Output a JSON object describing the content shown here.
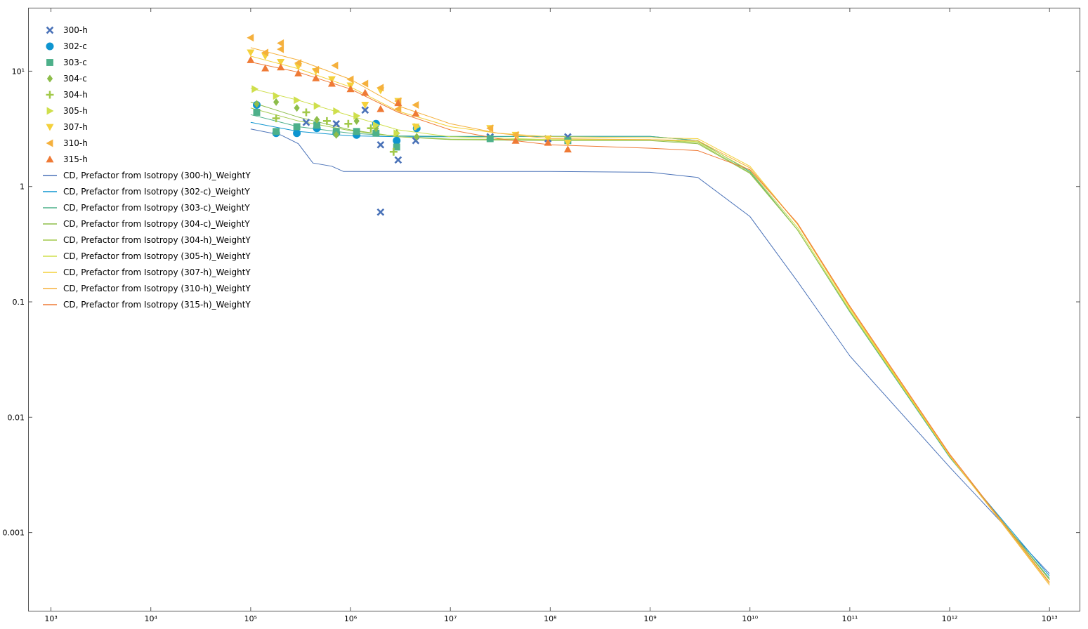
{
  "chart_data": {
    "type": "scatter",
    "title": "",
    "xlabel": "",
    "ylabel": "",
    "x_scale": "log",
    "y_scale": "log",
    "xlim": [
      600,
      20000000000000
    ],
    "ylim": [
      0.00021,
      35
    ],
    "grid": false,
    "legend_position": "top-left",
    "x_ticks": [
      {
        "value": 1000,
        "label": "10³"
      },
      {
        "value": 10000,
        "label": "10⁴"
      },
      {
        "value": 100000,
        "label": "10⁵"
      },
      {
        "value": 1000000,
        "label": "10⁶"
      },
      {
        "value": 10000000,
        "label": "10⁷"
      },
      {
        "value": 100000000,
        "label": "10⁸"
      },
      {
        "value": 1000000000,
        "label": "10⁹"
      },
      {
        "value": 10000000000,
        "label": "10¹⁰"
      },
      {
        "value": 100000000000,
        "label": "10¹¹"
      },
      {
        "value": 1000000000000,
        "label": "10¹²"
      },
      {
        "value": 10000000000000,
        "label": "10¹³"
      }
    ],
    "y_ticks": [
      {
        "value": 10,
        "label": "10¹"
      },
      {
        "value": 1,
        "label": "1"
      },
      {
        "value": 0.1,
        "label": "0.1"
      },
      {
        "value": 0.01,
        "label": "0.01"
      },
      {
        "value": 0.001,
        "label": "0.001"
      }
    ],
    "series": [
      {
        "name": "300-h",
        "kind": "scatter",
        "marker": "x",
        "color": "#4a72b8",
        "points": [
          [
            360000,
            3.6
          ],
          [
            720000,
            3.5
          ],
          [
            1400000,
            4.6
          ],
          [
            2000000,
            0.6
          ],
          [
            2000000,
            2.3
          ],
          [
            3000000,
            1.7
          ],
          [
            4500000,
            2.5
          ],
          [
            25000000,
            2.7
          ],
          [
            95000000,
            2.6
          ],
          [
            150000000,
            2.7
          ]
        ]
      },
      {
        "name": "302-c",
        "kind": "scatter",
        "marker": "circle",
        "color": "#0e95d0",
        "points": [
          [
            115000,
            5.1
          ],
          [
            180000,
            2.9
          ],
          [
            290000,
            2.9
          ],
          [
            460000,
            3.2
          ],
          [
            720000,
            2.9
          ],
          [
            1150000,
            2.8
          ],
          [
            1800000,
            3.5
          ],
          [
            2900000,
            2.5
          ],
          [
            4600000,
            3.2
          ]
        ]
      },
      {
        "name": "303-c",
        "kind": "scatter",
        "marker": "square",
        "color": "#4db08a",
        "points": [
          [
            115000,
            4.4
          ],
          [
            180000,
            3.0
          ],
          [
            290000,
            3.3
          ],
          [
            460000,
            3.4
          ],
          [
            720000,
            3.0
          ],
          [
            1150000,
            3.0
          ],
          [
            1800000,
            2.9
          ],
          [
            2900000,
            2.2
          ],
          [
            25000000,
            2.6
          ],
          [
            150000000,
            2.5
          ]
        ]
      },
      {
        "name": "304-c",
        "kind": "scatter",
        "marker": "diamond",
        "color": "#8dbd4a",
        "points": [
          [
            115000,
            5.2
          ],
          [
            180000,
            5.4
          ],
          [
            290000,
            4.8
          ],
          [
            460000,
            3.8
          ],
          [
            720000,
            2.8
          ],
          [
            1150000,
            3.7
          ],
          [
            1800000,
            3.2
          ],
          [
            2900000,
            2.9
          ],
          [
            4600000,
            2.7
          ]
        ]
      },
      {
        "name": "304-h",
        "kind": "scatter",
        "marker": "plus",
        "color": "#a2c94a",
        "points": [
          [
            180000,
            3.9
          ],
          [
            360000,
            4.4
          ],
          [
            580000,
            3.7
          ],
          [
            950000,
            3.5
          ],
          [
            1600000,
            3.2
          ],
          [
            2700000,
            2.0
          ]
        ]
      },
      {
        "name": "305-h",
        "kind": "scatter",
        "marker": "triangle-right",
        "color": "#cfdf4c",
        "points": [
          [
            110000,
            7.0
          ],
          [
            180000,
            6.1
          ],
          [
            290000,
            5.6
          ],
          [
            460000,
            5.0
          ],
          [
            720000,
            4.5
          ],
          [
            1150000,
            4.1
          ],
          [
            1800000,
            3.4
          ],
          [
            2900000,
            2.9
          ],
          [
            4600000,
            3.3
          ]
        ]
      },
      {
        "name": "307-h",
        "kind": "scatter",
        "marker": "triangle-down",
        "color": "#f4d13c",
        "points": [
          [
            100000,
            14.5
          ],
          [
            140000,
            13.5
          ],
          [
            200000,
            12.0
          ],
          [
            300000,
            11.0
          ],
          [
            450000,
            10.0
          ],
          [
            650000,
            8.5
          ],
          [
            1000000,
            7.5
          ],
          [
            1400000,
            5.1
          ],
          [
            2000000,
            6.8
          ],
          [
            3000000,
            5.5
          ],
          [
            4500000,
            3.3
          ],
          [
            25000000,
            3.2
          ],
          [
            45000000,
            2.8
          ],
          [
            95000000,
            2.6
          ],
          [
            150000000,
            2.4
          ]
        ]
      },
      {
        "name": "310-h",
        "kind": "scatter",
        "marker": "triangle-left",
        "color": "#f5b03c",
        "points": [
          [
            100000,
            19.5
          ],
          [
            140000,
            14.5
          ],
          [
            200000,
            17.5
          ],
          [
            200000,
            15.5
          ],
          [
            300000,
            11.8
          ],
          [
            450000,
            10.3
          ],
          [
            700000,
            11.2
          ],
          [
            1000000,
            8.5
          ],
          [
            1400000,
            7.8
          ],
          [
            2000000,
            7.2
          ],
          [
            3000000,
            5.5
          ],
          [
            3000000,
            4.7
          ],
          [
            4500000,
            5.1
          ],
          [
            25000000,
            3.2
          ],
          [
            45000000,
            2.8
          ]
        ]
      },
      {
        "name": "315-h",
        "kind": "scatter",
        "marker": "triangle-up",
        "color": "#ef7a35",
        "points": [
          [
            100000,
            12.5
          ],
          [
            140000,
            10.6
          ],
          [
            200000,
            10.8
          ],
          [
            300000,
            9.6
          ],
          [
            450000,
            8.7
          ],
          [
            650000,
            7.8
          ],
          [
            1000000,
            7.0
          ],
          [
            1400000,
            6.5
          ],
          [
            2000000,
            4.7
          ],
          [
            3000000,
            5.3
          ],
          [
            4500000,
            4.3
          ],
          [
            45000000,
            2.5
          ],
          [
            95000000,
            2.4
          ],
          [
            150000000,
            2.1
          ]
        ]
      },
      {
        "name": "CD, Prefactor from Isotropy (300-h)_WeightY",
        "kind": "line",
        "color": "#4a72b8",
        "points": [
          [
            100000,
            3.15
          ],
          [
            200000,
            2.8
          ],
          [
            300000,
            2.35
          ],
          [
            420000,
            1.6
          ],
          [
            650000,
            1.5
          ],
          [
            850000,
            1.35
          ],
          [
            1000000,
            1.35
          ],
          [
            100000000,
            1.35
          ],
          [
            1000000000,
            1.33
          ],
          [
            3000000000,
            1.2
          ],
          [
            10000000000,
            0.55
          ],
          [
            30000000000,
            0.15
          ],
          [
            100000000000,
            0.034
          ],
          [
            1000000000000,
            0.0037
          ],
          [
            10000000000000,
            0.00044
          ]
        ]
      },
      {
        "name": "CD, Prefactor from Isotropy (302-c)_WeightY",
        "kind": "line",
        "color": "#0e95d0",
        "points": [
          [
            100000,
            3.6
          ],
          [
            300000,
            3.0
          ],
          [
            1000000,
            2.75
          ],
          [
            3000000,
            2.7
          ],
          [
            10000000,
            2.7
          ],
          [
            100000000,
            2.72
          ],
          [
            1000000000,
            2.72
          ],
          [
            3000000000,
            2.5
          ],
          [
            10000000000,
            1.35
          ],
          [
            30000000000,
            0.42
          ],
          [
            100000000000,
            0.082
          ],
          [
            1000000000000,
            0.0045
          ],
          [
            10000000000000,
            0.00042
          ]
        ]
      },
      {
        "name": "CD, Prefactor from Isotropy (303-c)_WeightY",
        "kind": "line",
        "color": "#4db08a",
        "points": [
          [
            100000,
            4.2
          ],
          [
            300000,
            3.3
          ],
          [
            1000000,
            2.9
          ],
          [
            3000000,
            2.75
          ],
          [
            10000000,
            2.72
          ],
          [
            100000000,
            2.72
          ],
          [
            1000000000,
            2.72
          ],
          [
            3000000000,
            2.5
          ],
          [
            10000000000,
            1.35
          ],
          [
            30000000000,
            0.42
          ],
          [
            100000000000,
            0.082
          ],
          [
            1000000000000,
            0.0045
          ],
          [
            10000000000000,
            0.0004
          ]
        ]
      },
      {
        "name": "CD, Prefactor from Isotropy (304-c)_WeightY",
        "kind": "line",
        "color": "#8dbd4a",
        "points": [
          [
            100000,
            5.4
          ],
          [
            300000,
            4.0
          ],
          [
            1000000,
            3.1
          ],
          [
            3000000,
            2.7
          ],
          [
            10000000,
            2.55
          ],
          [
            100000000,
            2.5
          ],
          [
            1000000000,
            2.5
          ],
          [
            3000000000,
            2.35
          ],
          [
            10000000000,
            1.3
          ],
          [
            30000000000,
            0.42
          ],
          [
            100000000000,
            0.083
          ],
          [
            1000000000000,
            0.0046
          ],
          [
            10000000000000,
            0.00039
          ]
        ]
      },
      {
        "name": "CD, Prefactor from Isotropy (304-h)_WeightY",
        "kind": "line",
        "color": "#a2c94a",
        "points": [
          [
            100000,
            4.8
          ],
          [
            300000,
            3.7
          ],
          [
            1000000,
            3.05
          ],
          [
            3000000,
            2.7
          ],
          [
            10000000,
            2.58
          ],
          [
            100000000,
            2.55
          ],
          [
            1000000000,
            2.55
          ],
          [
            3000000000,
            2.4
          ],
          [
            10000000000,
            1.32
          ],
          [
            30000000000,
            0.42
          ],
          [
            100000000000,
            0.083
          ],
          [
            1000000000000,
            0.0046
          ],
          [
            10000000000000,
            0.00039
          ]
        ]
      },
      {
        "name": "CD, Prefactor from Isotropy (305-h)_WeightY",
        "kind": "line",
        "color": "#cfdf4c",
        "points": [
          [
            100000,
            7.1
          ],
          [
            300000,
            5.6
          ],
          [
            1000000,
            4.1
          ],
          [
            3000000,
            3.1
          ],
          [
            10000000,
            2.7
          ],
          [
            100000000,
            2.55
          ],
          [
            1000000000,
            2.55
          ],
          [
            3000000000,
            2.45
          ],
          [
            10000000000,
            1.38
          ],
          [
            30000000000,
            0.44
          ],
          [
            100000000000,
            0.085
          ],
          [
            1000000000000,
            0.0046
          ],
          [
            10000000000000,
            0.00037
          ]
        ]
      },
      {
        "name": "CD, Prefactor from Isotropy (307-h)_WeightY",
        "kind": "line",
        "color": "#f4d13c",
        "points": [
          [
            100000,
            13.5
          ],
          [
            300000,
            10.5
          ],
          [
            1000000,
            7.3
          ],
          [
            3000000,
            4.5
          ],
          [
            10000000,
            3.3
          ],
          [
            30000000,
            2.9
          ],
          [
            100000000,
            2.7
          ],
          [
            1000000000,
            2.65
          ],
          [
            3000000000,
            2.6
          ],
          [
            10000000000,
            1.5
          ],
          [
            30000000000,
            0.47
          ],
          [
            100000000000,
            0.088
          ],
          [
            1000000000000,
            0.0046
          ],
          [
            10000000000000,
            0.00036
          ]
        ]
      },
      {
        "name": "CD, Prefactor from Isotropy (310-h)_WeightY",
        "kind": "line",
        "color": "#f5b03c",
        "points": [
          [
            100000,
            16.0
          ],
          [
            300000,
            12.5
          ],
          [
            1000000,
            8.5
          ],
          [
            3000000,
            5.0
          ],
          [
            10000000,
            3.5
          ],
          [
            30000000,
            2.9
          ],
          [
            100000000,
            2.6
          ],
          [
            1000000000,
            2.55
          ],
          [
            3000000000,
            2.5
          ],
          [
            10000000000,
            1.45
          ],
          [
            30000000000,
            0.47
          ],
          [
            100000000000,
            0.09
          ],
          [
            1000000000000,
            0.0047
          ],
          [
            10000000000000,
            0.00035
          ]
        ]
      },
      {
        "name": "CD, Prefactor from Isotropy (315-h)_WeightY",
        "kind": "line",
        "color": "#ef7a35",
        "points": [
          [
            100000,
            12.0
          ],
          [
            300000,
            9.8
          ],
          [
            1000000,
            7.0
          ],
          [
            3000000,
            4.4
          ],
          [
            10000000,
            3.1
          ],
          [
            30000000,
            2.6
          ],
          [
            100000000,
            2.3
          ],
          [
            1000000000,
            2.15
          ],
          [
            3000000000,
            2.05
          ],
          [
            10000000000,
            1.4
          ],
          [
            30000000000,
            0.48
          ],
          [
            100000000000,
            0.092
          ],
          [
            1000000000000,
            0.0048
          ],
          [
            10000000000000,
            0.00037
          ]
        ]
      }
    ]
  }
}
